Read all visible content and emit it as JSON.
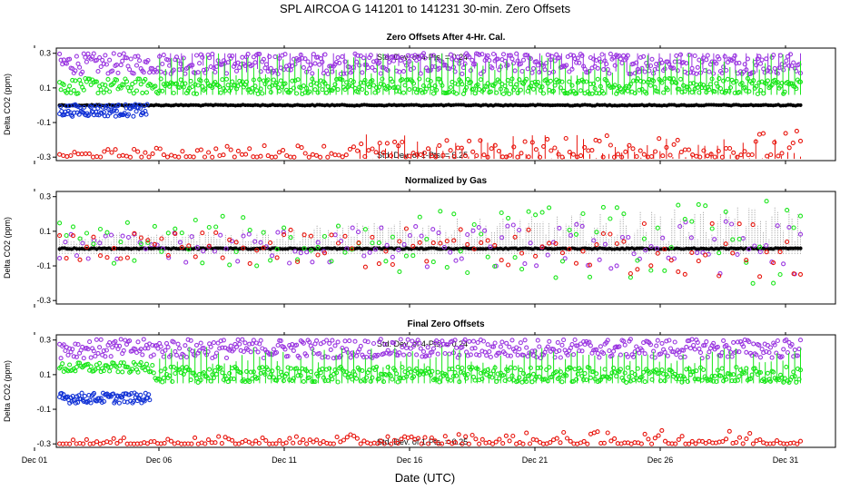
{
  "title": "SPL   AIRCOA G   141201 to 141231   30-min. Zero Offsets",
  "xlabel": "Date (UTC)",
  "colors": {
    "red": "#e8140c",
    "green": "#19e619",
    "purple": "#9a36e0",
    "blue": "#1434d6",
    "black": "#000000",
    "gray": "#808080"
  },
  "chart_data": [
    {
      "type": "scatter",
      "title": "Zero Offsets After 4-Hr. Cal.",
      "ylabel": "Delta CO2 (ppm)",
      "x_ticks": [
        "Dec 01",
        "Dec 06",
        "Dec 11",
        "Dec 16",
        "Dec 21",
        "Dec 26",
        "Dec 31"
      ],
      "y_ticks": [
        "0.3",
        "0.1",
        "-0.1",
        "-0.3"
      ],
      "ylim": [
        -0.32,
        0.33
      ],
      "annotations": [
        "Std. Dev. of 4-Pts. = 0.24",
        "Std. Dev. of 1-Pts. = 0.25"
      ],
      "series": [
        {
          "color": "purple",
          "x_range": [
            "Dec 02",
            "Dec 31"
          ],
          "y_approx": [
            0.22,
            0.28
          ]
        },
        {
          "color": "green",
          "x_range": [
            "Dec 02",
            "Dec 31"
          ],
          "y_approx": [
            0.08,
            0.14
          ]
        },
        {
          "color": "blue",
          "x_range": [
            "Dec 02",
            "Dec 05"
          ],
          "y_approx": [
            -0.06,
            -0.01
          ]
        },
        {
          "color": "black",
          "x_range": [
            "Dec 02",
            "Dec 31"
          ],
          "y_approx": [
            0.0,
            0.0
          ]
        },
        {
          "color": "red",
          "x_range": [
            "Dec 02",
            "Dec 31"
          ],
          "y_approx": [
            -0.3,
            -0.2
          ]
        }
      ]
    },
    {
      "type": "scatter",
      "title": "Normalized by Gas",
      "ylabel": "Delta CO2 (ppm)",
      "x_ticks": [
        "Dec 01",
        "Dec 06",
        "Dec 11",
        "Dec 16",
        "Dec 21",
        "Dec 26",
        "Dec 31"
      ],
      "y_ticks": [
        "0.3",
        "0.1",
        "-0.1",
        "-0.3"
      ],
      "ylim": [
        -0.32,
        0.33
      ],
      "series": [
        {
          "color": "black",
          "x_range": [
            "Dec 02",
            "Dec 31"
          ],
          "y_approx": [
            0.0,
            0.0
          ]
        },
        {
          "color": "purple",
          "x_range": [
            "Dec 02",
            "Dec 31"
          ],
          "y_approx": [
            -0.1,
            0.15
          ]
        },
        {
          "color": "green",
          "x_range": [
            "Dec 02",
            "Dec 31"
          ],
          "y_approx": [
            -0.1,
            0.25
          ]
        },
        {
          "color": "red",
          "x_range": [
            "Dec 02",
            "Dec 31"
          ],
          "y_approx": [
            -0.1,
            0.1
          ]
        }
      ]
    },
    {
      "type": "scatter",
      "title": "Final Zero Offsets",
      "ylabel": "Delta CO2 (ppm)",
      "x_ticks": [
        "Dec 01",
        "Dec 06",
        "Dec 11",
        "Dec 16",
        "Dec 21",
        "Dec 26",
        "Dec 31"
      ],
      "y_ticks": [
        "0.3",
        "0.1",
        "-0.1",
        "-0.3"
      ],
      "ylim": [
        -0.32,
        0.33
      ],
      "annotations": [
        "Std. Dev. of 4-Pts. = 0.24",
        "Std. Dev. of 1-Pts. = 0.25"
      ],
      "series": [
        {
          "color": "purple",
          "x_range": [
            "Dec 02",
            "Dec 31"
          ],
          "y_approx": [
            0.22,
            0.28
          ]
        },
        {
          "color": "green",
          "x_range": [
            "Dec 02",
            "Dec 31"
          ],
          "y_approx": [
            0.08,
            0.14
          ]
        },
        {
          "color": "blue",
          "x_range": [
            "Dec 02",
            "Dec 05"
          ],
          "y_approx": [
            -0.06,
            -0.01
          ]
        },
        {
          "color": "red",
          "x_range": [
            "Dec 02",
            "Dec 31"
          ],
          "y_approx": [
            -0.3,
            -0.25
          ]
        }
      ]
    }
  ]
}
